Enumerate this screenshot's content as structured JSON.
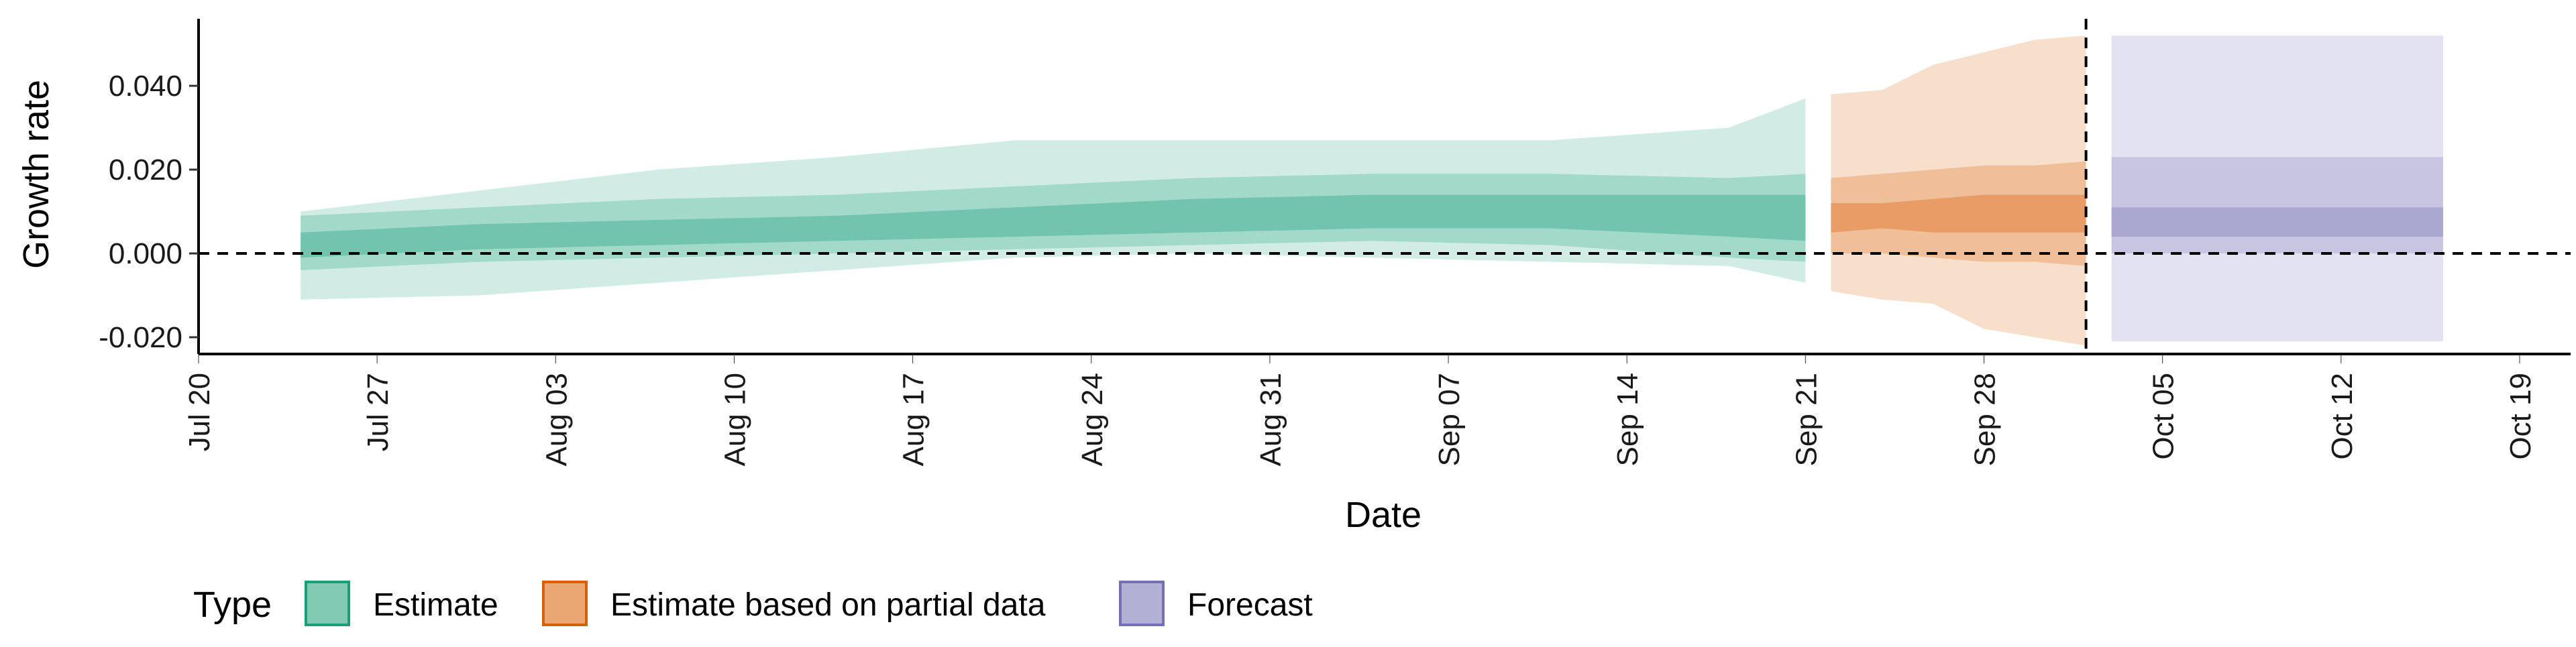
{
  "chart_data": {
    "type": "area",
    "xlabel": "Date",
    "ylabel": "Growth rate",
    "x_ticks": [
      "Jul 20",
      "Jul 27",
      "Aug 03",
      "Aug 10",
      "Aug 17",
      "Aug 24",
      "Aug 31",
      "Sep 07",
      "Sep 14",
      "Sep 21",
      "Sep 28",
      "Oct 05",
      "Oct 12",
      "Oct 19"
    ],
    "y_ticks": [
      "-0.020",
      "0.000",
      "0.020",
      "0.040"
    ],
    "ylim": [
      -0.024,
      0.056
    ],
    "xlim": [
      "2020-07-20",
      "2020-10-21"
    ],
    "grid": false,
    "legend": {
      "title": "Type",
      "position": "bottom-left",
      "items": [
        {
          "label": "Estimate",
          "color": "#1b9e77"
        },
        {
          "label": "Estimate based on partial data",
          "color": "#d95f02"
        },
        {
          "label": "Forecast",
          "color": "#7570b3"
        }
      ]
    },
    "reference_lines": [
      {
        "orientation": "horizontal",
        "y": 0.0,
        "style": "dashed"
      },
      {
        "orientation": "vertical",
        "x": "2020-10-02",
        "style": "dashed"
      }
    ],
    "series": [
      {
        "name": "Estimate",
        "color": "#1b9e77",
        "x": [
          "2020-07-24",
          "2020-07-31",
          "2020-08-07",
          "2020-08-14",
          "2020-08-21",
          "2020-08-28",
          "2020-09-04",
          "2020-09-11",
          "2020-09-18",
          "2020-09-21"
        ],
        "median": [
          0.002,
          0.004,
          0.005,
          0.006,
          0.007,
          0.009,
          0.01,
          0.01,
          0.009,
          0.009
        ],
        "lower_50": [
          -0.001,
          0.001,
          0.002,
          0.003,
          0.004,
          0.005,
          0.006,
          0.006,
          0.004,
          0.003
        ],
        "upper_50": [
          0.005,
          0.007,
          0.008,
          0.009,
          0.011,
          0.013,
          0.014,
          0.014,
          0.014,
          0.014
        ],
        "lower_90": [
          -0.004,
          -0.002,
          -0.001,
          0.0,
          0.001,
          0.002,
          0.003,
          0.002,
          -0.001,
          -0.002
        ],
        "upper_90": [
          0.009,
          0.011,
          0.013,
          0.014,
          0.016,
          0.018,
          0.019,
          0.019,
          0.018,
          0.019
        ],
        "lower_ci": [
          -0.011,
          -0.01,
          -0.007,
          -0.004,
          -0.001,
          0.0,
          -0.001,
          -0.002,
          -0.003,
          -0.007
        ],
        "upper_ci": [
          0.01,
          0.015,
          0.02,
          0.023,
          0.027,
          0.027,
          0.027,
          0.027,
          0.03,
          0.037
        ]
      },
      {
        "name": "Estimate based on partial data",
        "color": "#d95f02",
        "x": [
          "2020-09-22",
          "2020-09-24",
          "2020-09-26",
          "2020-09-28",
          "2020-09-30",
          "2020-10-02"
        ],
        "median": [
          0.008,
          0.009,
          0.009,
          0.01,
          0.01,
          0.009
        ],
        "lower_50": [
          0.005,
          0.006,
          0.005,
          0.005,
          0.005,
          0.005
        ],
        "upper_50": [
          0.012,
          0.012,
          0.013,
          0.014,
          0.014,
          0.014
        ],
        "lower_90": [
          0.0,
          0.0,
          -0.001,
          -0.002,
          -0.002,
          -0.003
        ],
        "upper_90": [
          0.018,
          0.019,
          0.02,
          0.021,
          0.021,
          0.022
        ],
        "lower_ci": [
          -0.009,
          -0.011,
          -0.012,
          -0.018,
          -0.02,
          -0.022
        ],
        "upper_ci": [
          0.038,
          0.039,
          0.045,
          0.048,
          0.051,
          0.052
        ]
      },
      {
        "name": "Forecast",
        "color": "#7570b3",
        "x": [
          "2020-10-03",
          "2020-10-16"
        ],
        "median": [
          0.008,
          0.008
        ],
        "lower_50": [
          0.004,
          0.004
        ],
        "upper_50": [
          0.011,
          0.011
        ],
        "lower_90": [
          0.0,
          0.0
        ],
        "upper_90": [
          0.023,
          0.023
        ],
        "lower_ci": [
          -0.021,
          -0.021
        ],
        "upper_ci": [
          0.052,
          0.052
        ]
      }
    ]
  }
}
